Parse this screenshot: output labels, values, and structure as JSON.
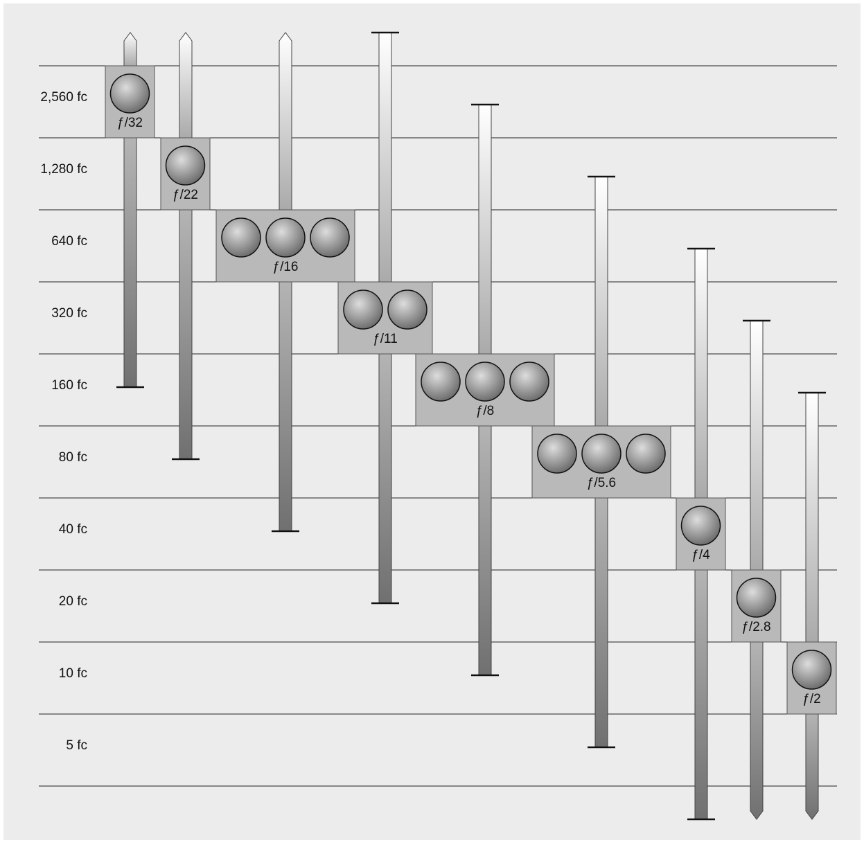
{
  "rows": [
    "2,560 fc",
    "1,280 fc",
    "640 fc",
    "320 fc",
    "160 fc",
    "80 fc",
    "40 fc",
    "20 fc",
    "10 fc",
    "5 fc"
  ],
  "stops": [
    {
      "label": "ƒ/32"
    },
    {
      "label": "ƒ/22"
    },
    {
      "label": "ƒ/16"
    },
    {
      "label": "ƒ/11"
    },
    {
      "label": "ƒ/8"
    },
    {
      "label": "ƒ/5.6"
    },
    {
      "label": "ƒ/4"
    },
    {
      "label": "ƒ/2.8"
    },
    {
      "label": "ƒ/2"
    }
  ]
}
